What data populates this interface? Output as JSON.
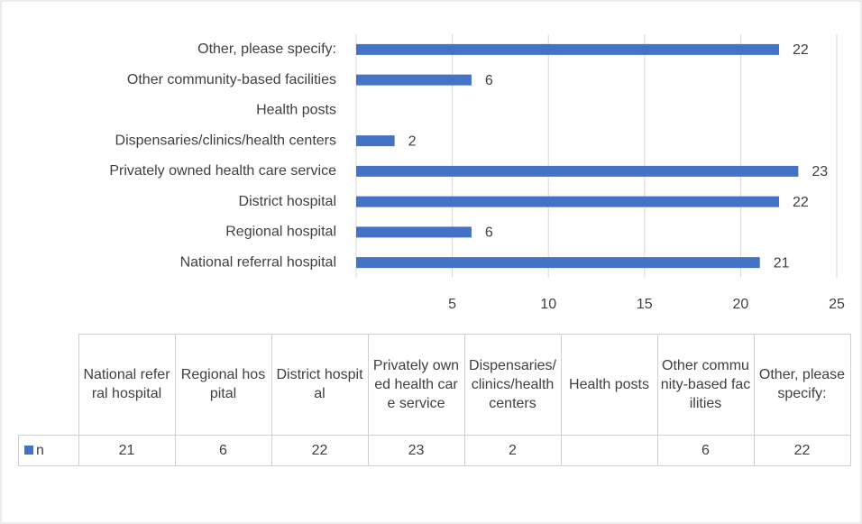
{
  "chart_data": {
    "type": "bar",
    "orientation": "horizontal",
    "categories": [
      "National referral hospital",
      "Regional hospital",
      "District hospital",
      "Privately owned health care service",
      "Dispensaries/clinics/health centers",
      "Health posts",
      "Other community-based facilities",
      "Other, please specify:"
    ],
    "series": [
      {
        "name": "n",
        "color": "#4472c4",
        "values": [
          21,
          6,
          22,
          23,
          2,
          null,
          6,
          22
        ]
      }
    ],
    "xlim": [
      0,
      25
    ],
    "xticks": [
      5,
      10,
      15,
      20,
      25
    ],
    "grid": true,
    "data_table": true
  }
}
